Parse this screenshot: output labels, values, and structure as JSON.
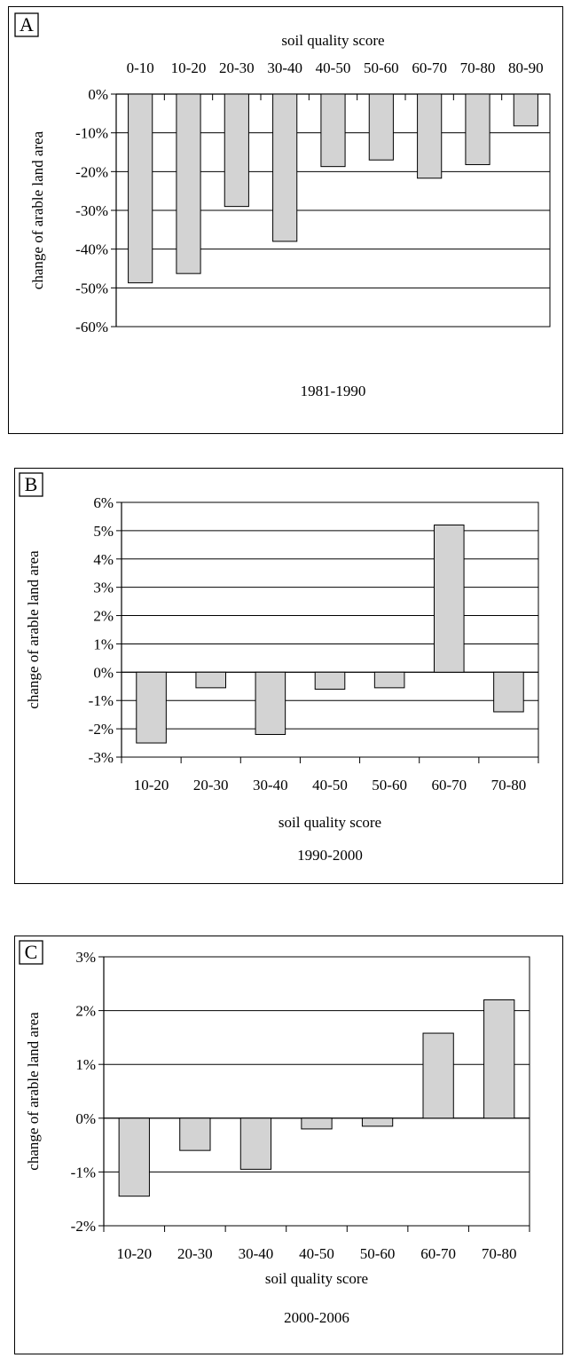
{
  "chart_data": [
    {
      "type": "bar",
      "panel_label": "A",
      "title": "1981-1990",
      "xlabel": "soil quality score",
      "ylabel": "change of arable land area",
      "categories": [
        "0-10",
        "10-20",
        "20-30",
        "30-40",
        "40-50",
        "50-60",
        "60-70",
        "70-80",
        "80-90"
      ],
      "values": [
        -48.7,
        -46.3,
        -29.0,
        -38.0,
        -18.7,
        -17.0,
        -21.7,
        -18.2,
        -8.2
      ],
      "ylim": [
        -60,
        0
      ],
      "yticks": [
        "0%",
        "-10%",
        "-20%",
        "-30%",
        "-40%",
        "-50%",
        "-60%"
      ],
      "x_axis_position": "top",
      "grid": true,
      "bar_color": "#d3d3d3"
    },
    {
      "type": "bar",
      "panel_label": "B",
      "title": "1990-2000",
      "xlabel": "soil quality score",
      "ylabel": "change of arable land area",
      "categories": [
        "10-20",
        "20-30",
        "30-40",
        "40-50",
        "50-60",
        "60-70",
        "70-80"
      ],
      "values": [
        -2.5,
        -0.55,
        -2.2,
        -0.6,
        -0.55,
        5.2,
        -1.4
      ],
      "ylim": [
        -3,
        6
      ],
      "yticks": [
        "6%",
        "5%",
        "4%",
        "3%",
        "2%",
        "1%",
        "0%",
        "-1%",
        "-2%",
        "-3%"
      ],
      "x_axis_position": "bottom",
      "grid": true,
      "bar_color": "#d3d3d3"
    },
    {
      "type": "bar",
      "panel_label": "C",
      "title": "2000-2006",
      "xlabel": "soil quality score",
      "ylabel": "change of arable land area",
      "categories": [
        "10-20",
        "20-30",
        "30-40",
        "40-50",
        "50-60",
        "60-70",
        "70-80"
      ],
      "values": [
        -1.45,
        -0.6,
        -0.95,
        -0.2,
        -0.15,
        1.58,
        2.2
      ],
      "ylim": [
        -2,
        3
      ],
      "yticks": [
        "3%",
        "2%",
        "1%",
        "0%",
        "-1%",
        "-2%"
      ],
      "x_axis_position": "bottom",
      "grid": true,
      "bar_color": "#d3d3d3"
    }
  ]
}
